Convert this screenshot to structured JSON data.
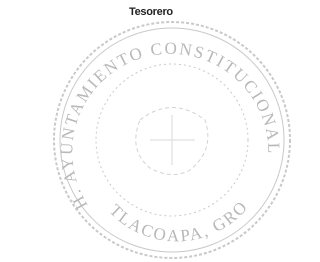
{
  "signature": {
    "role": "Tesorero"
  },
  "seal": {
    "top_text": "H. AYUNTAMIENTO CONSTITUCIONAL",
    "bottom_text": "TLACOAPA, GRO."
  }
}
